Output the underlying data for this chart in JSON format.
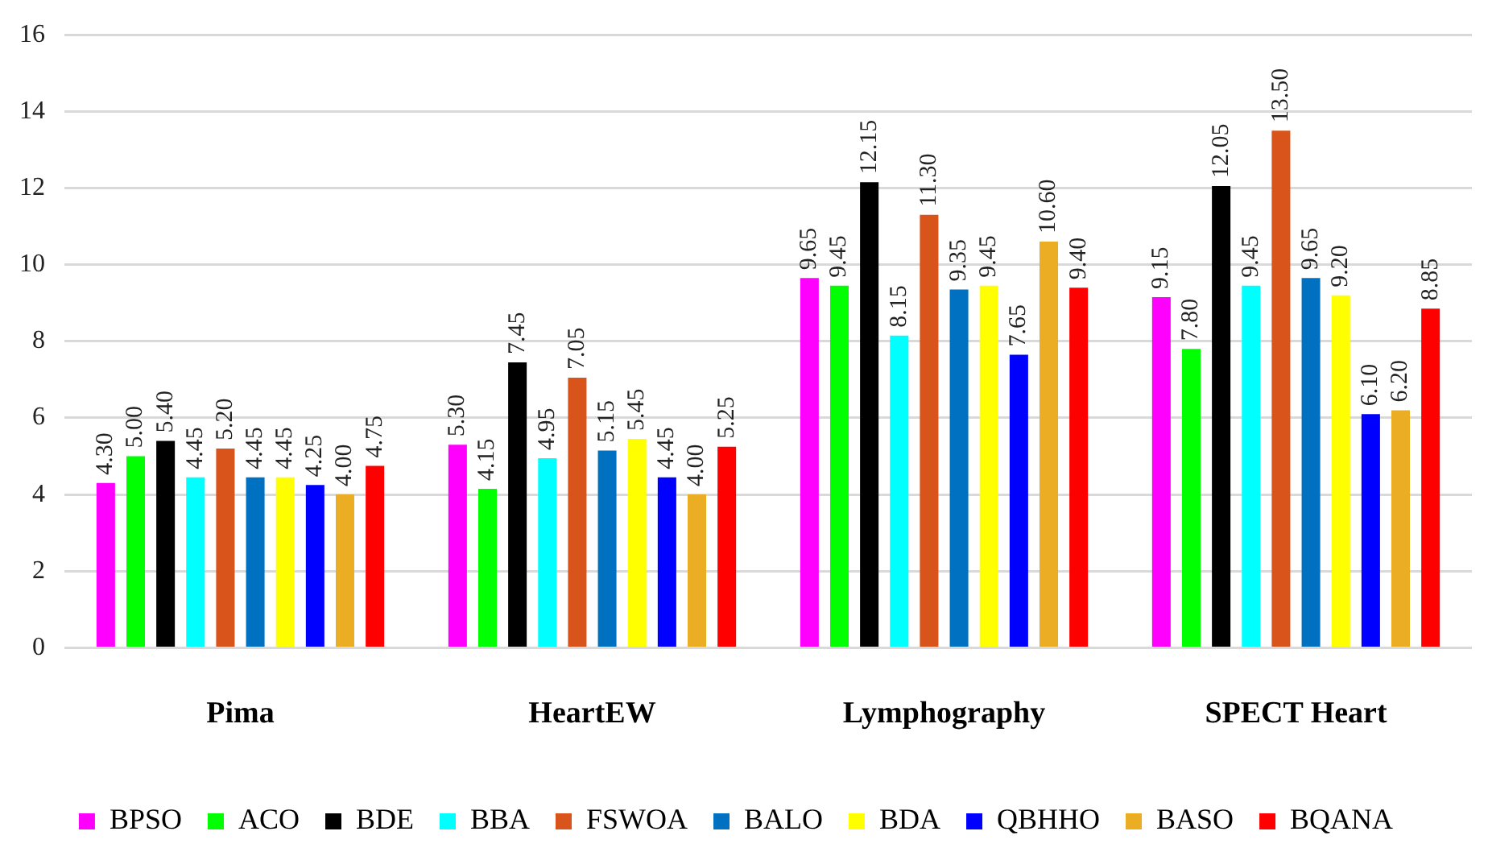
{
  "chart_data": {
    "type": "bar",
    "categories": [
      "Pima",
      "HeartEW",
      "Lymphography",
      "SPECT Heart"
    ],
    "series": [
      {
        "name": "BPSO",
        "color": "#ff00ff",
        "values": [
          4.3,
          5.3,
          9.65,
          9.15
        ],
        "value_labels": [
          "4.30",
          "5.30",
          "9.65",
          "9.15"
        ]
      },
      {
        "name": "ACO",
        "color": "#00ff00",
        "values": [
          5.0,
          4.15,
          9.45,
          7.8
        ],
        "value_labels": [
          "5.00",
          "4.15",
          "9.45",
          "7.80"
        ]
      },
      {
        "name": "BDE",
        "color": "#000000",
        "values": [
          5.4,
          7.45,
          12.15,
          12.05
        ],
        "value_labels": [
          "5.40",
          "7.45",
          "12.15",
          "12.05"
        ]
      },
      {
        "name": "BBA",
        "color": "#00ffff",
        "values": [
          4.45,
          4.95,
          8.15,
          9.45
        ],
        "value_labels": [
          "4.45",
          "4.95",
          "8.15",
          "9.45"
        ]
      },
      {
        "name": "FSWOA",
        "color": "#d9541a",
        "values": [
          5.2,
          7.05,
          11.3,
          13.5
        ],
        "value_labels": [
          "5.20",
          "7.05",
          "11.30",
          "13.50"
        ]
      },
      {
        "name": "BALO",
        "color": "#0070c0",
        "values": [
          4.45,
          5.15,
          9.35,
          9.65
        ],
        "value_labels": [
          "4.45",
          "5.15",
          "9.35",
          "9.65"
        ]
      },
      {
        "name": "BDA",
        "color": "#ffff00",
        "values": [
          4.45,
          5.45,
          9.45,
          9.2
        ],
        "value_labels": [
          "4.45",
          "5.45",
          "9.45",
          "9.20"
        ]
      },
      {
        "name": "QBHHO",
        "color": "#0000ff",
        "values": [
          4.25,
          4.45,
          7.65,
          6.1
        ],
        "value_labels": [
          "4.25",
          "4.45",
          "7.65",
          "6.10"
        ]
      },
      {
        "name": "BASO",
        "color": "#ebad23",
        "values": [
          4.0,
          4.0,
          10.6,
          6.2
        ],
        "value_labels": [
          "4.00",
          "4.00",
          "10.60",
          "6.20"
        ]
      },
      {
        "name": "BQANA",
        "color": "#ff0000",
        "values": [
          4.75,
          5.25,
          9.4,
          8.85
        ],
        "value_labels": [
          "4.75",
          "5.25",
          "9.40",
          "8.85"
        ]
      }
    ],
    "ylim": [
      0,
      16
    ],
    "yticks": [
      0,
      2,
      4,
      6,
      8,
      10,
      12,
      14,
      16
    ],
    "grid": "y",
    "legend": "bottom"
  }
}
